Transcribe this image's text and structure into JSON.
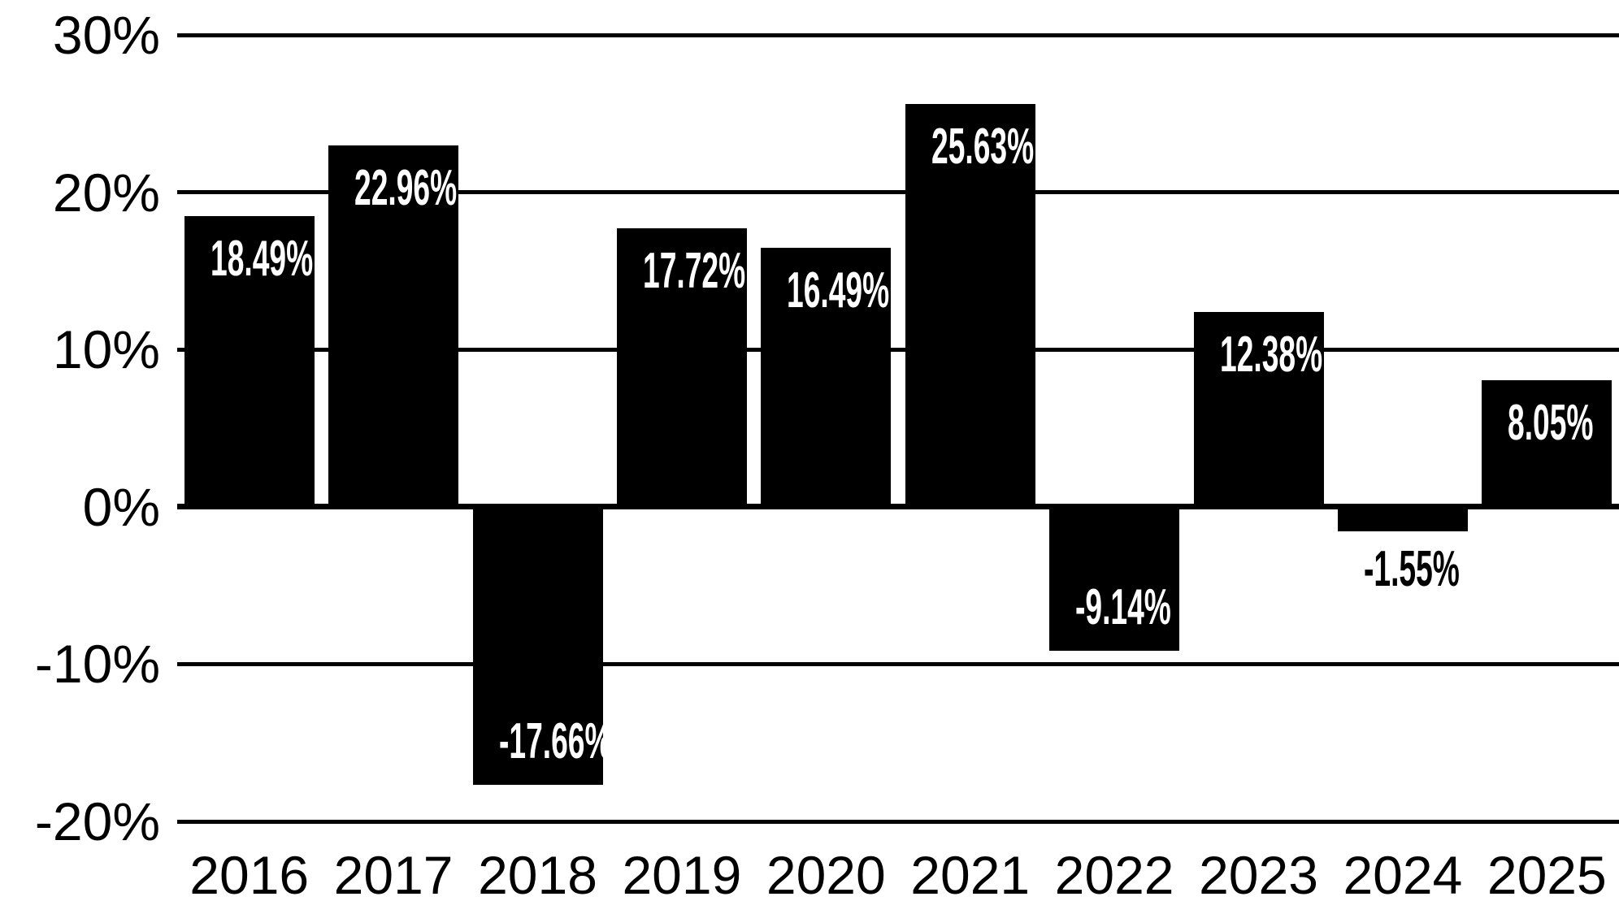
{
  "chart_data": {
    "type": "bar",
    "title": "",
    "xlabel": "",
    "ylabel": "",
    "categories": [
      "2016",
      "2017",
      "2018",
      "2019",
      "2020",
      "2021",
      "2022",
      "2023",
      "2024",
      "2025"
    ],
    "values": [
      18.49,
      22.96,
      -17.66,
      17.72,
      16.49,
      25.63,
      -9.14,
      12.38,
      -1.55,
      8.05
    ],
    "bar_labels": [
      "18.49%",
      "22.96%",
      "-17.66%",
      "17.72%",
      "16.49%",
      "25.63%",
      "-9.14%",
      "12.38%",
      "-1.55%",
      "8.05%"
    ],
    "ylim": [
      -20,
      30
    ],
    "yticks": [
      {
        "value": 30,
        "label": "30%"
      },
      {
        "value": 20,
        "label": "20%"
      },
      {
        "value": 10,
        "label": "10%"
      },
      {
        "value": 0,
        "label": "0%"
      },
      {
        "value": -10,
        "label": "-10%"
      },
      {
        "value": -20,
        "label": "-20%"
      }
    ],
    "grid": "horizontal-on",
    "legend": "none",
    "colors": {
      "background": "#ffffff",
      "bar": "#000000",
      "gridline": "#000000",
      "axis_text": "#000000",
      "bar_label_inside": "#ffffff",
      "bar_label_outside": "#000000"
    }
  }
}
